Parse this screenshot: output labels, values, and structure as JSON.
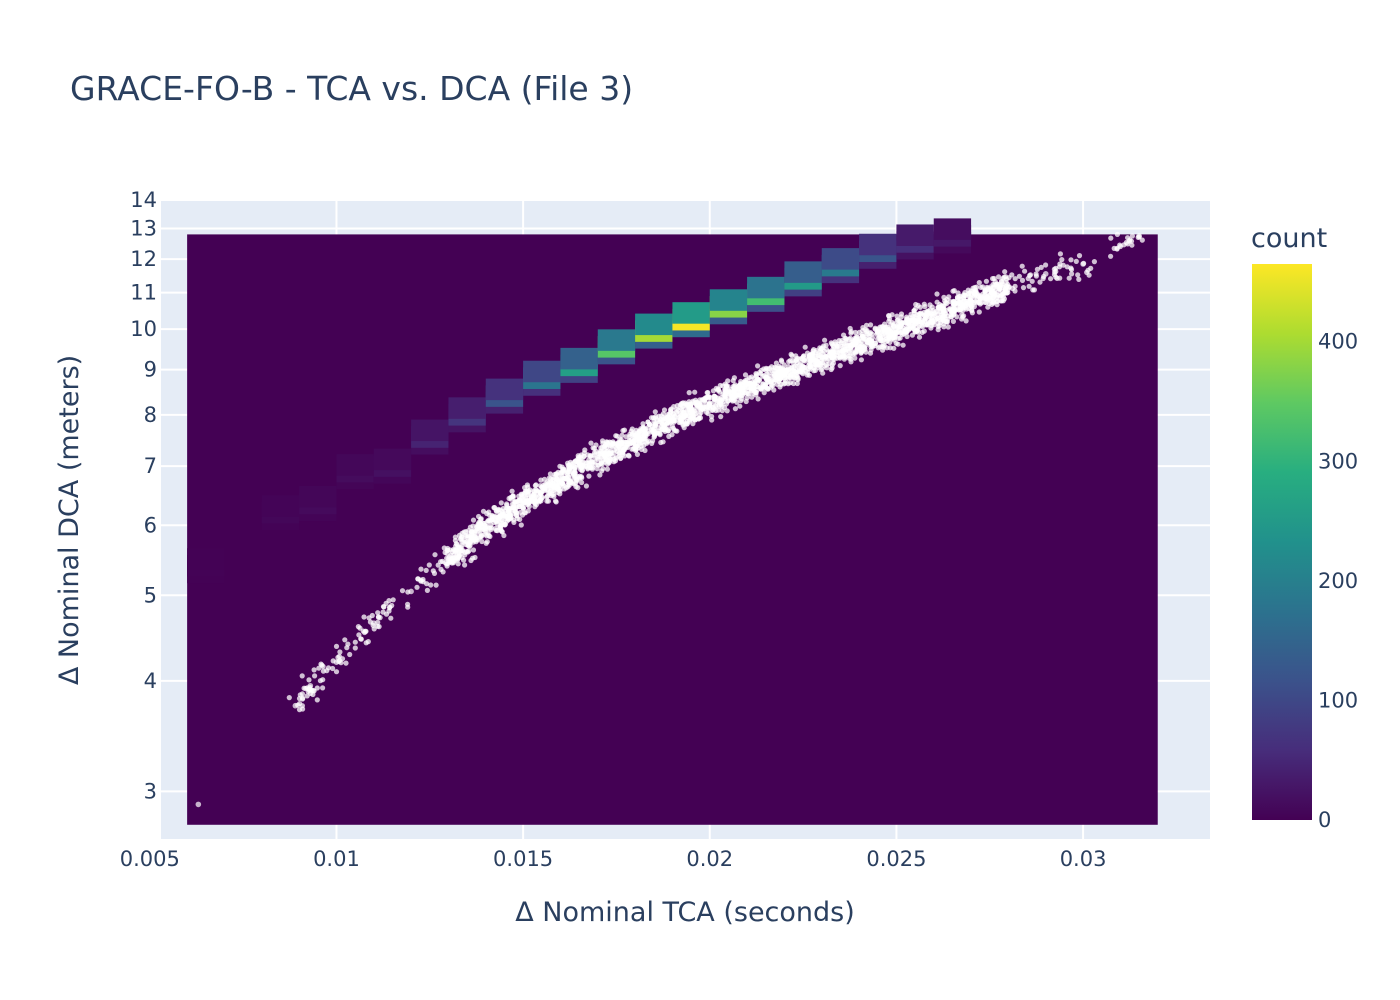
{
  "chart_data": {
    "type": "heatmap",
    "title": "GRACE-FO-B - TCA vs. DCA (File 3)",
    "xlabel": "Δ Nominal TCA (seconds)",
    "ylabel": "Δ Nominal DCA (meters)",
    "xlim": [
      0.0053,
      0.0334
    ],
    "ylim": [
      2.65,
      14.0
    ],
    "yscale": "log",
    "grid": true,
    "x_ticks": [
      {
        "value": 0.005,
        "label": "0.005"
      },
      {
        "value": 0.01,
        "label": "0.01"
      },
      {
        "value": 0.015,
        "label": "0.015"
      },
      {
        "value": 0.02,
        "label": "0.02"
      },
      {
        "value": 0.025,
        "label": "0.025"
      },
      {
        "value": 0.03,
        "label": "0.03"
      }
    ],
    "y_ticks": [
      {
        "value": 3,
        "label": "3"
      },
      {
        "value": 4,
        "label": "4"
      },
      {
        "value": 5,
        "label": "5"
      },
      {
        "value": 6,
        "label": "6"
      },
      {
        "value": 7,
        "label": "7"
      },
      {
        "value": 8,
        "label": "8"
      },
      {
        "value": 9,
        "label": "9"
      },
      {
        "value": 10,
        "label": "10"
      },
      {
        "value": 11,
        "label": "11"
      },
      {
        "value": 12,
        "label": "12"
      },
      {
        "value": 13,
        "label": "13"
      },
      {
        "value": 14,
        "label": "14"
      }
    ],
    "heatmap": {
      "x_range": [
        0.006,
        0.032
      ],
      "y_range": [
        2.75,
        12.8
      ],
      "approx_count_peak_by_x": [
        {
          "x": 0.0065,
          "y": 5.4,
          "count": 3
        },
        {
          "x": 0.0085,
          "y": 6.2,
          "count": 8
        },
        {
          "x": 0.0095,
          "y": 6.35,
          "count": 12
        },
        {
          "x": 0.0105,
          "y": 6.9,
          "count": 14
        },
        {
          "x": 0.0115,
          "y": 7.0,
          "count": 20
        },
        {
          "x": 0.0125,
          "y": 7.55,
          "count": 45
        },
        {
          "x": 0.0135,
          "y": 8.0,
          "count": 70
        },
        {
          "x": 0.0145,
          "y": 8.4,
          "count": 120
        },
        {
          "x": 0.0155,
          "y": 8.8,
          "count": 180
        },
        {
          "x": 0.0165,
          "y": 9.1,
          "count": 260
        },
        {
          "x": 0.0175,
          "y": 9.55,
          "count": 340
        },
        {
          "x": 0.0185,
          "y": 9.95,
          "count": 400
        },
        {
          "x": 0.0195,
          "y": 10.25,
          "count": 460
        },
        {
          "x": 0.0205,
          "y": 10.6,
          "count": 380
        },
        {
          "x": 0.0215,
          "y": 10.95,
          "count": 320
        },
        {
          "x": 0.0225,
          "y": 11.4,
          "count": 250
        },
        {
          "x": 0.0235,
          "y": 11.8,
          "count": 190
        },
        {
          "x": 0.0245,
          "y": 12.25,
          "count": 120
        },
        {
          "x": 0.0255,
          "y": 12.55,
          "count": 60
        },
        {
          "x": 0.0265,
          "y": 12.75,
          "count": 30
        }
      ]
    },
    "scatter": {
      "color": "#ffffff",
      "trend_points": [
        {
          "x": 0.0063,
          "y": 2.9
        },
        {
          "x": 0.0089,
          "y": 3.75
        },
        {
          "x": 0.0093,
          "y": 3.95
        },
        {
          "x": 0.01,
          "y": 4.2
        },
        {
          "x": 0.011,
          "y": 4.65
        },
        {
          "x": 0.012,
          "y": 5.05
        },
        {
          "x": 0.013,
          "y": 5.5
        },
        {
          "x": 0.014,
          "y": 5.95
        },
        {
          "x": 0.015,
          "y": 6.35
        },
        {
          "x": 0.016,
          "y": 6.75
        },
        {
          "x": 0.017,
          "y": 7.15
        },
        {
          "x": 0.018,
          "y": 7.5
        },
        {
          "x": 0.019,
          "y": 7.9
        },
        {
          "x": 0.02,
          "y": 8.25
        },
        {
          "x": 0.021,
          "y": 8.6
        },
        {
          "x": 0.022,
          "y": 8.95
        },
        {
          "x": 0.023,
          "y": 9.3
        },
        {
          "x": 0.024,
          "y": 9.65
        },
        {
          "x": 0.025,
          "y": 10.0
        },
        {
          "x": 0.026,
          "y": 10.4
        },
        {
          "x": 0.027,
          "y": 10.75
        },
        {
          "x": 0.028,
          "y": 11.15
        },
        {
          "x": 0.029,
          "y": 11.55
        },
        {
          "x": 0.03,
          "y": 11.85
        },
        {
          "x": 0.0315,
          "y": 12.75
        }
      ]
    },
    "colorbar": {
      "title": "count",
      "min": 0,
      "max": 465,
      "colorscale": "Viridis",
      "ticks": [
        {
          "value": 0,
          "label": "0"
        },
        {
          "value": 100,
          "label": "100"
        },
        {
          "value": 200,
          "label": "200"
        },
        {
          "value": 300,
          "label": "300"
        },
        {
          "value": 400,
          "label": "400"
        }
      ]
    }
  }
}
